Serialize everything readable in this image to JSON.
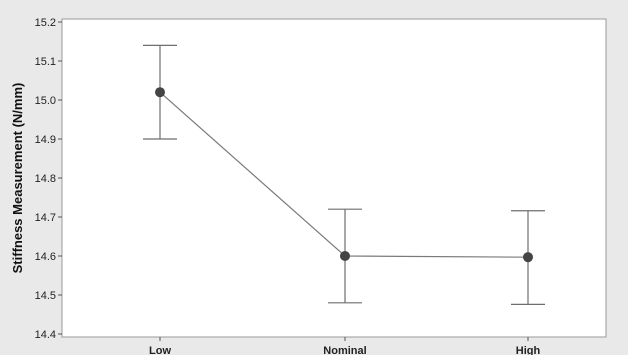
{
  "chart_data": {
    "type": "line",
    "categories": [
      "Low",
      "Nominal",
      "High"
    ],
    "ylabel": "Stiffness Measurement (N/mm)",
    "xlabel": "",
    "ylim": [
      14.4,
      15.2
    ],
    "yticks": [
      "14.4",
      "14.5",
      "14.6",
      "14.7",
      "14.8",
      "14.9",
      "15.0",
      "15.1",
      "15.2"
    ],
    "series": [
      {
        "values": [
          15.02,
          14.6,
          14.597
        ],
        "error_low": [
          14.9,
          14.48,
          14.476
        ],
        "error_high": [
          15.14,
          14.72,
          14.716
        ]
      }
    ],
    "grid": false,
    "colors": {
      "background": "#e9e9e9",
      "plot_area": "#ffffff",
      "line": "#7a7a7a",
      "marker": "#444444",
      "error_bar": "#6e6e6e"
    }
  }
}
